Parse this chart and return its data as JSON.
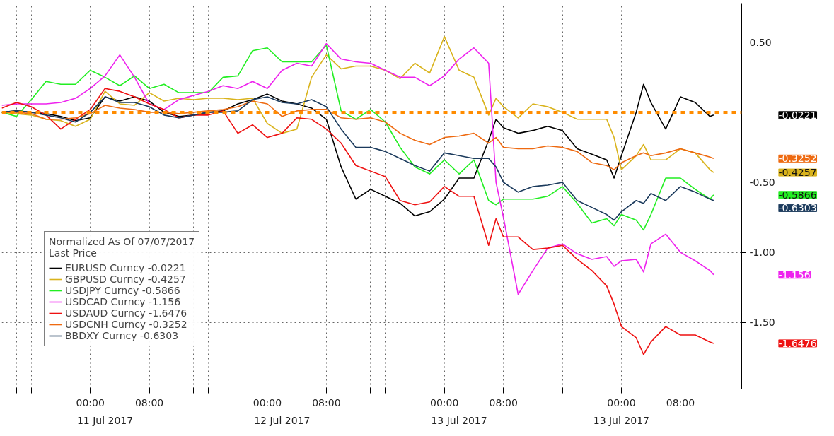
{
  "chart_data": {
    "type": "line",
    "legend_title": "Normalized As Of 07/07/2017\nLast Price",
    "x": [
      "2017-07-10T12:00",
      "2017-07-10T14:00",
      "2017-07-10T16:00",
      "2017-07-10T18:00",
      "2017-07-10T20:00",
      "2017-07-10T22:00",
      "2017-07-11T00:00",
      "2017-07-11T02:00",
      "2017-07-11T04:00",
      "2017-07-11T06:00",
      "2017-07-11T08:00",
      "2017-07-11T10:00",
      "2017-07-11T12:00",
      "2017-07-11T14:00",
      "2017-07-11T16:00",
      "2017-07-11T18:00",
      "2017-07-11T20:00",
      "2017-07-11T22:00",
      "2017-07-12T00:00",
      "2017-07-12T02:00",
      "2017-07-12T04:00",
      "2017-07-12T06:00",
      "2017-07-12T08:00",
      "2017-07-12T10:00",
      "2017-07-12T12:00",
      "2017-07-12T14:00",
      "2017-07-12T16:00",
      "2017-07-12T18:00",
      "2017-07-12T20:00",
      "2017-07-12T22:00",
      "2017-07-13T00:00",
      "2017-07-13T02:00",
      "2017-07-13T04:00",
      "2017-07-13T06:00",
      "2017-07-13T07:00",
      "2017-07-13T08:00",
      "2017-07-13T10:00",
      "2017-07-13T12:00",
      "2017-07-13T14:00",
      "2017-07-13T16:00",
      "2017-07-13T18:00",
      "2017-07-13T20:00",
      "2017-07-13T22:00",
      "2017-07-13T23:00",
      "2017-07-14T00:00",
      "2017-07-14T02:00",
      "2017-07-14T03:00",
      "2017-07-14T04:00",
      "2017-07-14T06:00",
      "2017-07-14T08:00",
      "2017-07-14T10:00",
      "2017-07-14T12:00",
      "2017-07-14T12:30"
    ],
    "series": [
      {
        "name": "EURUSD Curncy -0.0221",
        "color": "#000000",
        "values": [
          0,
          0.01,
          0,
          -0.01,
          -0.03,
          -0.06,
          -0.04,
          0.11,
          0.08,
          0.11,
          0.08,
          0,
          -0.03,
          -0.02,
          0,
          0.01,
          0.06,
          0.09,
          0.13,
          0.08,
          0.06,
          0.03,
          -0.05,
          -0.39,
          -0.62,
          -0.55,
          -0.6,
          -0.65,
          -0.74,
          -0.71,
          -0.62,
          -0.47,
          -0.47,
          -0.2,
          -0.05,
          -0.11,
          -0.15,
          -0.13,
          -0.1,
          -0.13,
          -0.26,
          -0.3,
          -0.34,
          -0.47,
          -0.31,
          0,
          0.2,
          0.07,
          -0.12,
          0.11,
          0.07,
          -0.03,
          -0.02
        ]
      },
      {
        "name": "GBPUSD Curncy -0.4257",
        "color": "#d9b31c",
        "values": [
          0,
          -0.01,
          -0.02,
          -0.05,
          -0.06,
          -0.1,
          -0.05,
          0.15,
          0.06,
          0.05,
          0.14,
          0.08,
          0.1,
          0.09,
          0.1,
          0.1,
          0.09,
          0.1,
          -0.08,
          -0.15,
          -0.12,
          0.25,
          0.41,
          0.31,
          0.33,
          0.33,
          0.3,
          0.24,
          0.35,
          0.28,
          0.54,
          0.3,
          0.25,
          -0.02,
          0.1,
          0.04,
          -0.04,
          0.06,
          0.04,
          0,
          -0.05,
          -0.05,
          -0.05,
          -0.18,
          -0.41,
          -0.31,
          -0.23,
          -0.34,
          -0.34,
          -0.26,
          -0.29,
          -0.41,
          -0.43
        ]
      },
      {
        "name": "USDJPY Curncy -0.5866",
        "color": "#22ee22",
        "values": [
          0,
          -0.03,
          0.09,
          0.22,
          0.2,
          0.2,
          0.3,
          0.25,
          0.19,
          0.26,
          0.17,
          0.2,
          0.14,
          0.14,
          0.14,
          0.25,
          0.26,
          0.44,
          0.46,
          0.36,
          0.36,
          0.36,
          0.48,
          0.01,
          -0.05,
          0.02,
          -0.07,
          -0.25,
          -0.39,
          -0.44,
          -0.34,
          -0.44,
          -0.34,
          -0.63,
          -0.66,
          -0.62,
          -0.62,
          -0.62,
          -0.6,
          -0.53,
          -0.65,
          -0.79,
          -0.76,
          -0.81,
          -0.73,
          -0.77,
          -0.84,
          -0.73,
          -0.47,
          -0.47,
          -0.55,
          -0.62,
          -0.59
        ]
      },
      {
        "name": "USDCAD Curncy -1.156",
        "color": "#ee22ee",
        "values": [
          0.05,
          0.06,
          0.06,
          0.06,
          0.07,
          0.1,
          0.17,
          0.26,
          0.41,
          0.25,
          0.06,
          0.02,
          0.09,
          0.12,
          0.15,
          0.19,
          0.17,
          0.22,
          0.17,
          0.3,
          0.35,
          0.33,
          0.49,
          0.38,
          0.36,
          0.35,
          0.3,
          0.25,
          0.25,
          0.19,
          0.26,
          0.38,
          0.46,
          0.35,
          -0.5,
          -0.75,
          -1.3,
          -1.13,
          -0.97,
          -0.94,
          -1.01,
          -1.05,
          -1.03,
          -1.1,
          -1.06,
          -1.05,
          -1.14,
          -0.94,
          -0.87,
          -1.0,
          -1.06,
          -1.13,
          -1.16
        ]
      },
      {
        "name": "USDAUD Curncy -1.6476",
        "color": "#ee1111",
        "values": [
          0.03,
          0.07,
          0.04,
          -0.02,
          -0.12,
          -0.05,
          0.02,
          0.17,
          0.15,
          0.11,
          0.06,
          0.02,
          -0.04,
          -0.02,
          -0.02,
          0.01,
          -0.15,
          -0.09,
          -0.18,
          -0.15,
          -0.04,
          -0.05,
          -0.12,
          -0.22,
          -0.38,
          -0.42,
          -0.46,
          -0.63,
          -0.66,
          -0.64,
          -0.53,
          -0.6,
          -0.6,
          -0.95,
          -0.76,
          -0.89,
          -0.89,
          -0.98,
          -0.97,
          -0.95,
          -1.05,
          -1.13,
          -1.24,
          -1.37,
          -1.53,
          -1.61,
          -1.73,
          -1.64,
          -1.53,
          -1.59,
          -1.59,
          -1.64,
          -1.65
        ]
      },
      {
        "name": "USDCNH Curncy -0.3252",
        "color": "#ee6a11",
        "values": [
          0,
          0,
          -0.01,
          -0.05,
          -0.05,
          -0.04,
          -0.01,
          0.05,
          0.03,
          0.02,
          0,
          0,
          -0.01,
          0,
          0.01,
          0.02,
          0.04,
          0.08,
          0.06,
          -0.03,
          0.01,
          0.02,
          0.02,
          -0.04,
          -0.05,
          -0.04,
          -0.07,
          -0.15,
          -0.2,
          -0.23,
          -0.18,
          -0.17,
          -0.15,
          -0.22,
          -0.18,
          -0.25,
          -0.26,
          -0.26,
          -0.24,
          -0.25,
          -0.28,
          -0.36,
          -0.38,
          -0.41,
          -0.36,
          -0.31,
          -0.29,
          -0.31,
          -0.29,
          -0.26,
          -0.29,
          -0.32,
          -0.33
        ]
      },
      {
        "name": "BBDXY Curncy -0.6303",
        "color": "#1b3a5c",
        "values": [
          0,
          0.01,
          0,
          -0.02,
          -0.04,
          -0.07,
          0,
          0.11,
          0.07,
          0.07,
          0.04,
          -0.02,
          -0.04,
          -0.02,
          0,
          0,
          0.01,
          0.09,
          0.11,
          0.07,
          0.06,
          0.09,
          0.04,
          -0.12,
          -0.25,
          -0.25,
          -0.28,
          -0.33,
          -0.38,
          -0.42,
          -0.29,
          -0.31,
          -0.33,
          -0.33,
          -0.39,
          -0.5,
          -0.57,
          -0.53,
          -0.52,
          -0.5,
          -0.63,
          -0.68,
          -0.73,
          -0.77,
          -0.71,
          -0.63,
          -0.65,
          -0.58,
          -0.63,
          -0.53,
          -0.57,
          -0.62,
          -0.63
        ]
      }
    ],
    "annotations": [
      "-0.0221",
      "-0.4257",
      "-0.5866",
      "-1.156",
      "-1.6476",
      "-0.3252",
      "-0.6303"
    ],
    "xlim": [
      "2017-07-10T12:00",
      "2017-07-14T16:18"
    ],
    "xticks": [
      {
        "value": "2017-07-10T14:00",
        "label": null
      },
      {
        "value": "2017-07-10T16:00",
        "label": null
      },
      {
        "value": "2017-07-11T00:00",
        "label": "00:00"
      },
      {
        "value": "2017-07-11T08:00",
        "label": "08:00"
      },
      {
        "value": "2017-07-11T14:00",
        "label": null
      },
      {
        "value": "2017-07-11T16:00",
        "label": null
      },
      {
        "value": "2017-07-12T00:00",
        "label": "00:00"
      },
      {
        "value": "2017-07-12T08:00",
        "label": "08:00"
      },
      {
        "value": "2017-07-12T14:00",
        "label": null
      },
      {
        "value": "2017-07-12T16:00",
        "label": null
      },
      {
        "value": "2017-07-13T00:00",
        "label": "00:00"
      },
      {
        "value": "2017-07-13T08:00",
        "label": "08:00"
      },
      {
        "value": "2017-07-13T14:00",
        "label": null
      },
      {
        "value": "2017-07-13T16:00",
        "label": null
      },
      {
        "value": "2017-07-14T00:00",
        "label": "00:00"
      },
      {
        "value": "2017-07-14T08:00",
        "label": "08:00"
      }
    ],
    "x2lim": [
      "2017-07-10T12:00",
      "2017-07-14T16:18"
    ],
    "x2ticks": [
      {
        "value": "2017-07-11T02:00",
        "label": "11 Jul 2017"
      },
      {
        "value": "2017-07-12T02:00",
        "label": "12 Jul 2017"
      },
      {
        "value": "2017-07-13T02:00",
        "label": "13 Jul 2017"
      },
      {
        "value": "2017-07-13T23:59",
        "label": "13 Jul 2017"
      }
    ],
    "ylim": [
      -1.976,
      0.779
    ],
    "yticks": [
      {
        "value": 0.5,
        "label": "0.50"
      },
      {
        "value": 0,
        "label": null
      },
      {
        "value": -0.5,
        "label": "-0.50"
      },
      {
        "value": -1.0,
        "label": "-1.00"
      },
      {
        "value": -1.5,
        "label": "-1.50"
      }
    ],
    "ref_lines": [
      {
        "axis": "y",
        "value": 0,
        "color": "#ff8c00",
        "line_style": "dashed"
      }
    ],
    "grid": true,
    "legend": "bottom left",
    "line_style": "solid",
    "marker": "none"
  }
}
